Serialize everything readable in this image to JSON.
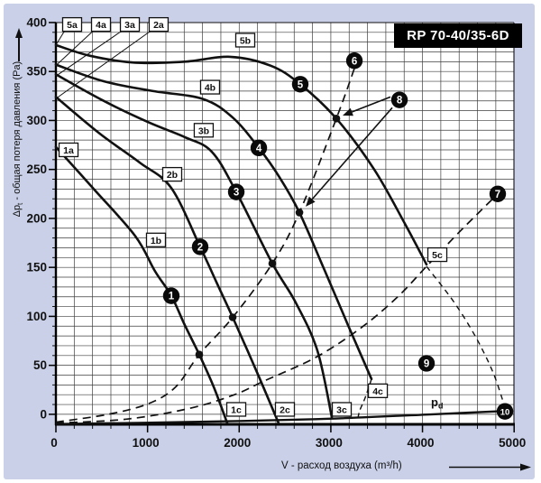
{
  "title": "RP 70-40/35-6D",
  "colors": {
    "background": "#c9d0e8",
    "plot_background": "#ffffff",
    "line": "#111111",
    "grid": "#3f3f3f",
    "title_bg": "#000000",
    "title_fg": "#ffffff",
    "label_box_bg": "#ffffff"
  },
  "x_axis": {
    "title": "V - расход воздуха (m³/h)",
    "tick_labels": [
      "0",
      "1000",
      "2000",
      "3000",
      "4000",
      "5000"
    ],
    "tick_values": [
      0,
      1000,
      2000,
      3000,
      4000,
      5000
    ],
    "minor_step": 200
  },
  "y_axis": {
    "title_prefix": "Δp",
    "title_sub": "t",
    "title_rest": " - общая потеря давления (Pa)",
    "tick_labels": [
      "0",
      "50",
      "100",
      "150",
      "200",
      "250",
      "300",
      "350",
      "400"
    ],
    "tick_values": [
      0,
      50,
      100,
      150,
      200,
      250,
      300,
      350,
      400
    ],
    "minor_step": 10
  },
  "pd_label": {
    "main": "p",
    "sub": "d"
  },
  "chart_data": {
    "type": "line",
    "title": "RP 70-40/35-6D",
    "xlabel": "V - расход воздуха (m³/h)",
    "ylabel": "Δpt - общая потеря давления (Pa)",
    "xlim": [
      0,
      5000
    ],
    "ylim": [
      0,
      400
    ],
    "grid": true,
    "series": [
      {
        "name": "fan-curve-1",
        "style": "solid",
        "points": [
          [
            0,
            273
          ],
          [
            423,
            229
          ],
          [
            866,
            182
          ],
          [
            1082,
            146
          ],
          [
            1259,
            121
          ],
          [
            1407,
            91
          ],
          [
            1564,
            61
          ],
          [
            1722,
            28
          ],
          [
            1869,
            -9
          ]
        ]
      },
      {
        "name": "fan-curve-2",
        "style": "solid",
        "points": [
          [
            0,
            324
          ],
          [
            472,
            287
          ],
          [
            915,
            257
          ],
          [
            1259,
            231
          ],
          [
            1574,
            171
          ],
          [
            1751,
            135
          ],
          [
            1929,
            99
          ],
          [
            2194,
            43
          ],
          [
            2430,
            -9
          ]
        ]
      },
      {
        "name": "fan-curve-3",
        "style": "solid",
        "points": [
          [
            0,
            347
          ],
          [
            521,
            320
          ],
          [
            1013,
            298
          ],
          [
            1407,
            283
          ],
          [
            1702,
            268
          ],
          [
            1968,
            227
          ],
          [
            2361,
            154
          ],
          [
            2617,
            114
          ],
          [
            2853,
            65
          ],
          [
            3011,
            -3
          ]
        ]
      },
      {
        "name": "fan-curve-4",
        "style": "solid",
        "points": [
          [
            0,
            357
          ],
          [
            521,
            340
          ],
          [
            1062,
            330
          ],
          [
            1604,
            322
          ],
          [
            1929,
            303
          ],
          [
            2214,
            272
          ],
          [
            2440,
            242
          ],
          [
            2657,
            206
          ],
          [
            2932,
            147
          ],
          [
            3188,
            91
          ],
          [
            3444,
            36
          ]
        ]
      },
      {
        "name": "fan-curve-5",
        "style": "solid",
        "points": [
          [
            0,
            377
          ],
          [
            374,
            366
          ],
          [
            866,
            359
          ],
          [
            1407,
            360
          ],
          [
            1899,
            365
          ],
          [
            2342,
            356
          ],
          [
            2666,
            337
          ],
          [
            3060,
            302
          ],
          [
            3473,
            250
          ],
          [
            3817,
            193
          ],
          [
            4044,
            153
          ]
        ]
      }
    ],
    "dashed_curves": [
      {
        "name": "system-curve-to-6",
        "dash": "9,6",
        "width": 1.7,
        "points": [
          [
            0,
            -8
          ],
          [
            571,
            0
          ],
          [
            1013,
            11
          ],
          [
            1308,
            28
          ],
          [
            1564,
            61
          ],
          [
            1929,
            99
          ],
          [
            2361,
            154
          ],
          [
            2657,
            206
          ],
          [
            3060,
            302
          ],
          [
            3257,
            353
          ]
        ]
      },
      {
        "name": "system-curve-to-7",
        "dash": "9,6",
        "width": 1.7,
        "points": [
          [
            0,
            -9
          ],
          [
            767,
            -5
          ],
          [
            1456,
            6
          ],
          [
            1948,
            20
          ],
          [
            2273,
            34
          ],
          [
            2833,
            58
          ],
          [
            3325,
            88
          ],
          [
            3719,
            119
          ],
          [
            4044,
            151
          ],
          [
            4359,
            182
          ],
          [
            4604,
            205
          ],
          [
            4811,
            224
          ]
        ]
      },
      {
        "name": "descender-to-10",
        "dash": "6,5",
        "width": 1.4,
        "points": [
          [
            4044,
            151
          ],
          [
            4310,
            119
          ],
          [
            4506,
            91
          ],
          [
            4654,
            66
          ],
          [
            4782,
            40
          ],
          [
            4880,
            13
          ],
          [
            4910,
            4
          ]
        ]
      },
      {
        "name": "curve-4-dashed-tail",
        "dash": "6,4",
        "width": 1.4,
        "points": [
          [
            3444,
            36
          ],
          [
            3375,
            17
          ],
          [
            3316,
            4
          ],
          [
            3296,
            -4
          ]
        ]
      }
    ],
    "pd_line": {
      "name": "dynamic-pressure-line",
      "points": [
        [
          0,
          -10
        ],
        [
          1358,
          -8
        ],
        [
          2833,
          -5
        ],
        [
          4112,
          0
        ],
        [
          4830,
          3
        ]
      ]
    },
    "operating_dots": [
      [
        1564,
        61
      ],
      [
        1929,
        99
      ],
      [
        2361,
        154
      ],
      [
        2657,
        206
      ],
      [
        3060,
        302
      ]
    ],
    "numbered_markers": [
      {
        "n": "1",
        "v": 1259,
        "p": 121
      },
      {
        "n": "2",
        "v": 1574,
        "p": 171
      },
      {
        "n": "3",
        "v": 1968,
        "p": 227
      },
      {
        "n": "4",
        "v": 2214,
        "p": 272
      },
      {
        "n": "5",
        "v": 2666,
        "p": 337
      },
      {
        "n": "6",
        "v": 3257,
        "p": 361
      },
      {
        "n": "7",
        "v": 4821,
        "p": 225
      },
      {
        "n": "8",
        "v": 3749,
        "p": 321
      },
      {
        "n": "9",
        "v": 4044,
        "p": 52
      },
      {
        "n": "10",
        "v": 4900,
        "p": 3
      }
    ],
    "boxed_labels": [
      {
        "text": "5a",
        "v": 177,
        "p": 398
      },
      {
        "text": "4a",
        "v": 492,
        "p": 398
      },
      {
        "text": "3a",
        "v": 807,
        "p": 398
      },
      {
        "text": "2a",
        "v": 1121,
        "p": 398
      },
      {
        "text": "1a",
        "v": 138,
        "p": 270
      },
      {
        "text": "5b",
        "v": 2066,
        "p": 382
      },
      {
        "text": "4b",
        "v": 1682,
        "p": 334
      },
      {
        "text": "3b",
        "v": 1613,
        "p": 290
      },
      {
        "text": "2b",
        "v": 1269,
        "p": 245
      },
      {
        "text": "1b",
        "v": 1092,
        "p": 178
      },
      {
        "text": "1c",
        "v": 1968,
        "p": 5
      },
      {
        "text": "2c",
        "v": 2499,
        "p": 5
      },
      {
        "text": "3c",
        "v": 3119,
        "p": 5
      },
      {
        "text": "4c",
        "v": 3513,
        "p": 24
      },
      {
        "text": "5c",
        "v": 4162,
        "p": 163
      }
    ],
    "leader_lines": [
      {
        "name": "leader-5a",
        "from": [
          98,
          392
        ],
        "to": [
          0,
          377
        ]
      },
      {
        "name": "leader-4a",
        "from": [
          413,
          392
        ],
        "to": [
          10,
          357
        ]
      },
      {
        "name": "leader-3a",
        "from": [
          728,
          392
        ],
        "to": [
          10,
          346
        ]
      },
      {
        "name": "leader-2a",
        "from": [
          1043,
          392
        ],
        "to": [
          10,
          323
        ]
      }
    ],
    "annotation_arrows": [
      {
        "name": "arrow-8-to-dot-on-curve-5",
        "from": [
          3650,
          324
        ],
        "to": [
          3129,
          305
        ]
      },
      {
        "name": "arrow-8-to-dot-on-curve-4",
        "from": [
          3670,
          313
        ],
        "to": [
          2725,
          212
        ]
      }
    ],
    "pd_label_pos": {
      "v": 4093,
      "p": 8
    }
  }
}
